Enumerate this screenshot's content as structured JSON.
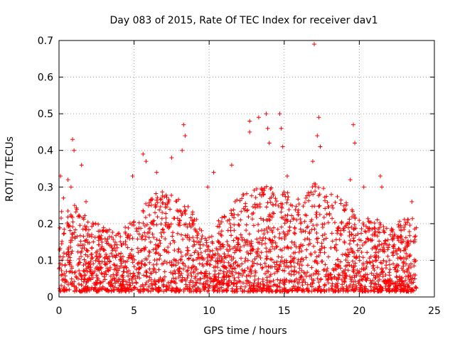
{
  "chart_data": {
    "type": "scatter",
    "title": "Day 083 of 2015, Rate Of TEC Index for receiver dav1",
    "xlabel": "GPS time / hours",
    "ylabel": "ROTI / TECUs",
    "xlim": [
      0,
      25
    ],
    "ylim": [
      0,
      0.7
    ],
    "xticks": [
      0,
      5,
      10,
      15,
      20,
      25
    ],
    "yticks": [
      0,
      0.1,
      0.2,
      0.3,
      0.4,
      0.5,
      0.6,
      0.7
    ],
    "xtick_labels": [
      "0",
      "5",
      "10",
      "15",
      "20",
      "25"
    ],
    "ytick_labels": [
      "0",
      "0.1",
      "0.2",
      "0.3",
      "0.4",
      "0.5",
      "0.6",
      "0.7"
    ],
    "grid": true,
    "marker": "+",
    "color": "#ff0000",
    "series": [
      {
        "x_range": [
          0,
          23.8
        ],
        "points": [
          [
            0.1,
            0.33
          ],
          [
            0.3,
            0.27
          ],
          [
            0.6,
            0.32
          ],
          [
            0.8,
            0.3
          ],
          [
            0.9,
            0.43
          ],
          [
            1.0,
            0.4
          ],
          [
            1.5,
            0.36
          ],
          [
            1.8,
            0.26
          ],
          [
            4.9,
            0.33
          ],
          [
            5.6,
            0.39
          ],
          [
            5.8,
            0.37
          ],
          [
            6.5,
            0.34
          ],
          [
            7.5,
            0.38
          ],
          [
            8.3,
            0.47
          ],
          [
            8.4,
            0.44
          ],
          [
            8.2,
            0.4
          ],
          [
            9.9,
            0.3
          ],
          [
            10.3,
            0.34
          ],
          [
            11.5,
            0.36
          ],
          [
            12.7,
            0.48
          ],
          [
            12.7,
            0.45
          ],
          [
            13.3,
            0.49
          ],
          [
            13.8,
            0.5
          ],
          [
            13.9,
            0.46
          ],
          [
            14.0,
            0.42
          ],
          [
            14.7,
            0.5
          ],
          [
            14.8,
            0.46
          ],
          [
            14.9,
            0.41
          ],
          [
            15.2,
            0.33
          ],
          [
            16.9,
            0.37
          ],
          [
            17.0,
            0.69
          ],
          [
            17.3,
            0.49
          ],
          [
            17.2,
            0.44
          ],
          [
            17.4,
            0.41
          ],
          [
            19.4,
            0.32
          ],
          [
            19.6,
            0.47
          ],
          [
            19.7,
            0.42
          ],
          [
            20.3,
            0.3
          ],
          [
            21.4,
            0.33
          ],
          [
            21.5,
            0.3
          ],
          [
            23.5,
            0.26
          ]
        ]
      }
    ]
  }
}
